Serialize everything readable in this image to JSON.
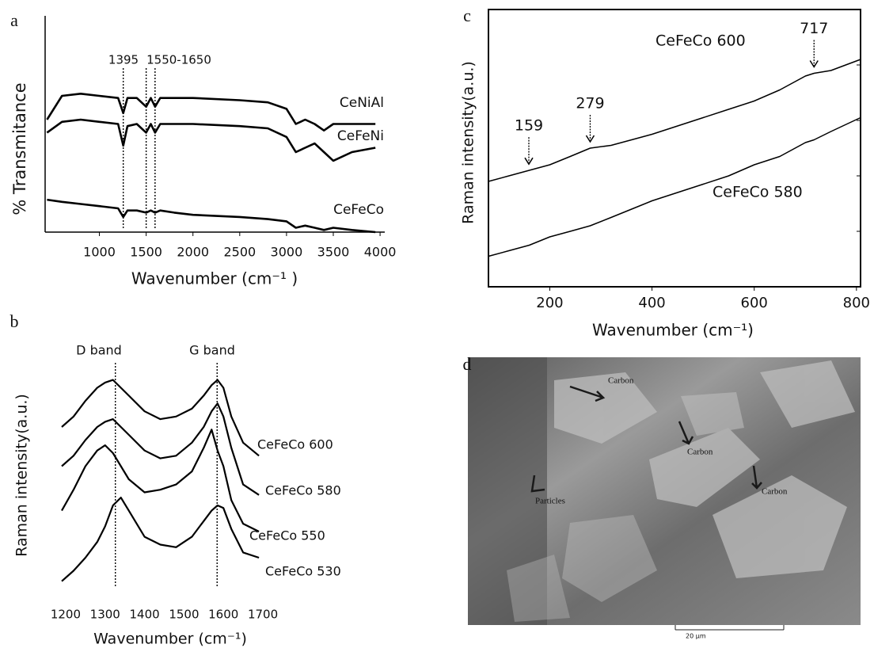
{
  "chart_data": [
    {
      "type": "line",
      "panel_label": "a",
      "x_label": "Wavenumber (cm⁻¹ )",
      "y_label": "% Transmitance",
      "xlim": [
        420,
        4050
      ],
      "ylim": [
        0,
        100
      ],
      "xticks": [
        1000,
        1500,
        2000,
        2500,
        3000,
        3500,
        4000
      ],
      "x": [
        440,
        600,
        800,
        1000,
        1200,
        1255,
        1300,
        1400,
        1500,
        1550,
        1595,
        1650,
        1800,
        2000,
        2500,
        2800,
        3000,
        3100,
        3200,
        3300,
        3400,
        3500,
        3700,
        3950
      ],
      "series": [
        {
          "name": "CeNiAl",
          "color": "#000000",
          "values": [
            52,
            63,
            64,
            63,
            62,
            55,
            62,
            62,
            58,
            62,
            58,
            62,
            62,
            62,
            61,
            60,
            57,
            50,
            52,
            50,
            47,
            50,
            50,
            50
          ]
        },
        {
          "name": "CeFeNi",
          "color": "#000000",
          "values": [
            46,
            51,
            52,
            51,
            50,
            40,
            49,
            50,
            46,
            50,
            46,
            50,
            50,
            50,
            49,
            48,
            44,
            37,
            39,
            41,
            37,
            33,
            37,
            39
          ]
        },
        {
          "name": "CeFeCo",
          "color": "#000000",
          "values": [
            15,
            14,
            13,
            12,
            11,
            7,
            10,
            10,
            9,
            10,
            9,
            10,
            9,
            8,
            7,
            6,
            5,
            2,
            3,
            2,
            1,
            2,
            1,
            0
          ]
        }
      ],
      "vlines": [
        1255,
        1500,
        1595
      ],
      "annotations": [
        "1395",
        "1550-1650"
      ]
    },
    {
      "type": "line",
      "panel_label": "b",
      "x_label": "Wavenumber (cm⁻¹)",
      "y_label": "Raman intensity(a.u.)",
      "xlim": [
        1170,
        1726
      ],
      "ylim": [
        0,
        100
      ],
      "xticks": [
        1200,
        1300,
        1400,
        1500,
        1600,
        1700
      ],
      "x": [
        1190,
        1220,
        1250,
        1280,
        1300,
        1320,
        1340,
        1360,
        1400,
        1440,
        1480,
        1520,
        1550,
        1570,
        1585,
        1600,
        1620,
        1650,
        1690
      ],
      "series": [
        {
          "name": "CeFeCo 600",
          "color": "#000000",
          "values": [
            70,
            74,
            80,
            85,
            87,
            88,
            85,
            82,
            76,
            73,
            74,
            77,
            82,
            86,
            88,
            85,
            74,
            64,
            59
          ]
        },
        {
          "name": "CeFeCo 580",
          "color": "#000000",
          "values": [
            55,
            59,
            65,
            70,
            72,
            73,
            70,
            67,
            61,
            58,
            59,
            64,
            70,
            76,
            79,
            74,
            62,
            48,
            44
          ]
        },
        {
          "name": "CeFeCo 550",
          "color": "#000000",
          "values": [
            38,
            46,
            55,
            61,
            63,
            60,
            55,
            50,
            45,
            46,
            48,
            53,
            62,
            69,
            61,
            55,
            42,
            33,
            30
          ]
        },
        {
          "name": "CeFeCo 530",
          "color": "#000000",
          "values": [
            11,
            15,
            20,
            26,
            32,
            40,
            43,
            38,
            28,
            25,
            24,
            28,
            34,
            38,
            40,
            39,
            31,
            22,
            20
          ]
        }
      ],
      "vlines": [
        1326,
        1584
      ],
      "annotations": [
        "D band",
        "G band"
      ]
    },
    {
      "type": "line",
      "panel_label": "c",
      "x_label": "Wavenumber (cm⁻¹)",
      "y_label": "Raman intensity(a.u.)",
      "xlim": [
        80,
        808
      ],
      "ylim": [
        0,
        100
      ],
      "xticks": [
        200,
        400,
        600,
        800
      ],
      "box": true,
      "x": [
        80,
        120,
        160,
        200,
        240,
        279,
        320,
        360,
        400,
        450,
        500,
        550,
        600,
        650,
        700,
        717,
        750,
        808
      ],
      "series": [
        {
          "name": "CeFeCo 600",
          "color": "#000000",
          "values": [
            38,
            40,
            42,
            44,
            47,
            50,
            51,
            53,
            55,
            58,
            61,
            64,
            67,
            71,
            76,
            77,
            78,
            82
          ]
        },
        {
          "name": "CeFeCo 580",
          "color": "#000000",
          "values": [
            11,
            13,
            15,
            18,
            20,
            22,
            25,
            28,
            31,
            34,
            37,
            40,
            44,
            47,
            52,
            53,
            56,
            61
          ]
        }
      ],
      "peaks": [
        159,
        279,
        717
      ]
    }
  ],
  "image_panel": {
    "panel_label": "d",
    "annotations": [
      "Carbon",
      "Carbon",
      "Particles",
      "Carbon"
    ],
    "scale_bar": "20 µm"
  }
}
